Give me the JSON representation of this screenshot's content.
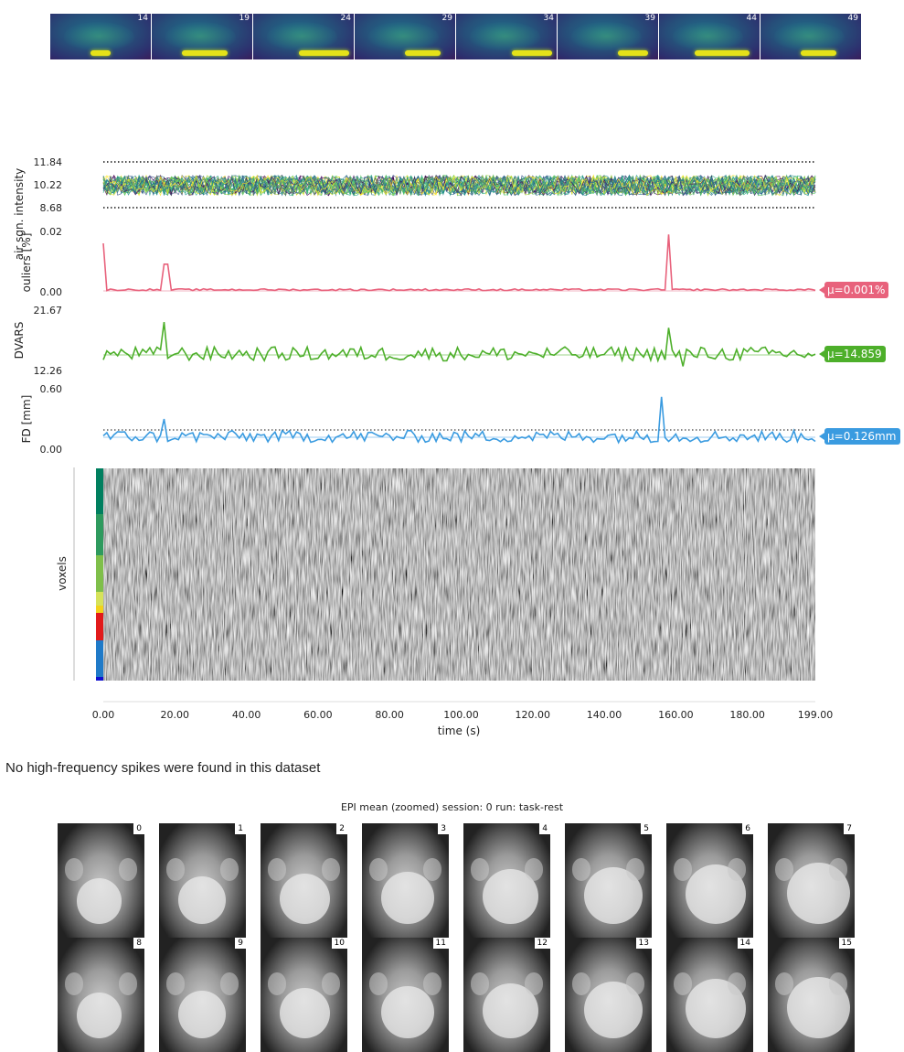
{
  "sagittal_strip": {
    "slices": [
      "14",
      "19",
      "24",
      "29",
      "34",
      "39",
      "44",
      "49"
    ]
  },
  "chart_data": [
    {
      "type": "line",
      "name": "air-signal",
      "ylabel": "air sgn. intensity",
      "yticks": [
        "11.84",
        "10.22",
        "8.68"
      ],
      "ylim": [
        8.68,
        11.84
      ],
      "series_count": 30,
      "mean": 10.22
    },
    {
      "type": "line",
      "name": "outliers",
      "ylabel": "ouliers [%]",
      "yticks": [
        "0.02",
        "0.00"
      ],
      "ylim": [
        0.0,
        0.02
      ],
      "color": "#e8627c",
      "mu_label": "μ=0.001%",
      "peaks": [
        {
          "x": 0,
          "y": 0.016
        },
        {
          "x": 17,
          "y": 0.009
        },
        {
          "x": 18,
          "y": 0.009
        },
        {
          "x": 158,
          "y": 0.019
        }
      ]
    },
    {
      "type": "line",
      "name": "dvars",
      "ylabel": "DVARS",
      "yticks": [
        "21.67",
        "12.26"
      ],
      "ylim": [
        12.26,
        21.67
      ],
      "color": "#4daf2a",
      "mu_label": "μ=14.859",
      "mean": 14.859,
      "peaks": [
        {
          "x": 17,
          "y": 19.8
        },
        {
          "x": 158,
          "y": 18.9
        },
        {
          "x": 162,
          "y": 12.9
        }
      ]
    },
    {
      "type": "line",
      "name": "fd",
      "ylabel": "FD [mm]",
      "yticks": [
        "0.60",
        "0.00"
      ],
      "ylim": [
        0.0,
        0.6
      ],
      "color": "#3a9be0",
      "mu_label": "μ=0.126mm",
      "mean": 0.126,
      "threshold": 0.2,
      "peaks": [
        {
          "x": 17,
          "y": 0.3
        },
        {
          "x": 156,
          "y": 0.52
        }
      ]
    },
    {
      "type": "heatmap",
      "name": "carpet",
      "ylabel": "voxels",
      "xlabel": "time (s)",
      "xticks": [
        "0.00",
        "20.00",
        "40.00",
        "60.00",
        "80.00",
        "100.00",
        "120.00",
        "140.00",
        "160.00",
        "180.00",
        "199.00"
      ],
      "xlim": [
        0,
        199
      ]
    }
  ],
  "colors": {
    "outliers": "#e8627c",
    "dvars": "#4daf2a",
    "fd": "#3a9be0"
  },
  "spikes_message": "No high-frequency spikes were found in this dataset",
  "epi": {
    "title": "EPI mean (zoomed) session: 0 run: task-rest",
    "tiles": [
      "0",
      "1",
      "2",
      "3",
      "4",
      "5",
      "6",
      "7",
      "8",
      "9",
      "10",
      "11",
      "12",
      "13",
      "14",
      "15"
    ]
  }
}
